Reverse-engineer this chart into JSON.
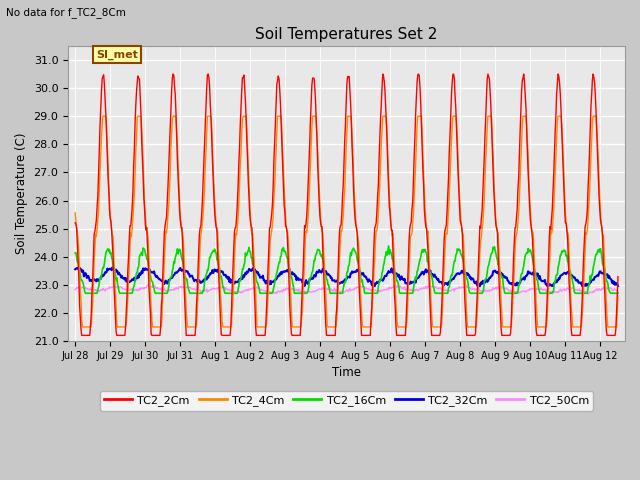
{
  "title": "Soil Temperatures Set 2",
  "subtitle": "No data for f_TC2_8Cm",
  "ylabel": "Soil Temperature (C)",
  "xlabel": "Time",
  "ylim": [
    21.0,
    31.5
  ],
  "yticks": [
    21.0,
    22.0,
    23.0,
    24.0,
    25.0,
    26.0,
    27.0,
    28.0,
    29.0,
    30.0,
    31.0
  ],
  "fig_bg_color": "#c8c8c8",
  "plot_bg_color": "#e8e8e8",
  "series_colors": {
    "TC2_2Cm": "#ff0000",
    "TC2_4Cm": "#ff8800",
    "TC2_16Cm": "#00dd00",
    "TC2_32Cm": "#0000dd",
    "TC2_50Cm": "#ff88ff"
  },
  "annotation_text": "SI_met",
  "annotation_color": "#884400",
  "annotation_bg": "#ffffaa",
  "tick_labels": [
    "Jul 28",
    "Jul 29",
    "Jul 30",
    "Jul 31",
    "Aug 1",
    "Aug 2",
    "Aug 3",
    "Aug 4",
    "Aug 5",
    "Aug 6",
    "Aug 7",
    "Aug 8",
    "Aug 9",
    "Aug 10",
    "Aug 11",
    "Aug 12"
  ]
}
